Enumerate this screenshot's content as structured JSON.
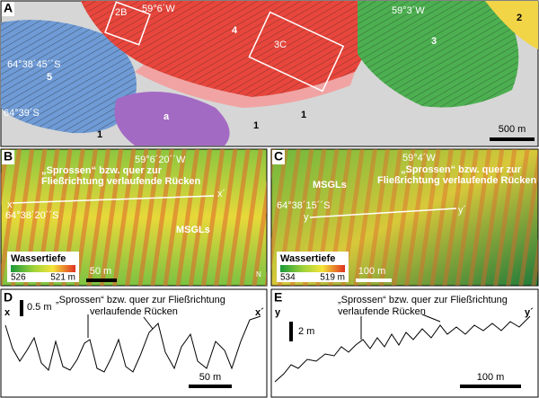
{
  "panels": {
    "a": {
      "letter": "A",
      "labels": [
        "2B",
        "59°6´W",
        "4",
        "3C",
        "59°3´W",
        "3",
        "2",
        "64°38´45´´S",
        "5",
        "64°39´S",
        "a",
        "1",
        "1",
        "1"
      ],
      "scale": "500 m"
    },
    "b": {
      "letter": "B",
      "lon": "59°6´20´´W",
      "ridges": [
        "„Sprossen“ bzw. quer zur",
        "Fließrichtung verlaufende Rücken"
      ],
      "x_start": "x",
      "x_end": "x´",
      "lat": "64°38´20´´S",
      "msgl": "MSGLs",
      "legend_title": "Wassertiefe",
      "legend_min": "526",
      "legend_max": "521 m",
      "scale": "50 m",
      "north": "N"
    },
    "c": {
      "letter": "C",
      "lon": "59°4´W",
      "msgl": "MSGLs",
      "ridges": [
        "„Sprossen“ bzw. quer zur",
        "Fließrichtung verlaufende Rücken"
      ],
      "lat": "64°38´15´´S",
      "y_start": "y",
      "y_end": "y´",
      "legend_title": "Wassertiefe",
      "legend_min": "534",
      "legend_max": "519 m",
      "scale": "100 m"
    },
    "d": {
      "letter": "D",
      "start": "x",
      "vscale": "0.5 m",
      "end": "x´",
      "ridges": [
        "„Sprossen“ bzw. quer zur Fließrichtung",
        "verlaufende Rücken"
      ],
      "scale": "50 m"
    },
    "e": {
      "letter": "E",
      "start": "y",
      "vscale": "2 m",
      "end": "y´",
      "ridges": [
        "„Sprossen“ bzw. quer zur Fließrichtung",
        "verlaufende Rücken"
      ],
      "scale": "100 m"
    }
  }
}
